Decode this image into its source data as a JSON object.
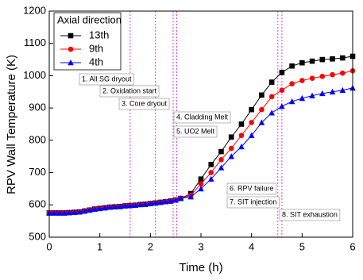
{
  "chart_data": {
    "type": "line",
    "x_label": "Time (h)",
    "y_label": "RPV Wall Temperature (K)",
    "xlim": [
      0,
      6
    ],
    "ylim": [
      500,
      1200
    ],
    "xticks": [
      0,
      1,
      2,
      3,
      4,
      5,
      6
    ],
    "yticks": [
      500,
      600,
      700,
      800,
      900,
      1000,
      1100,
      1200
    ],
    "legend_title": "Axial direction",
    "legend_position": "upper left",
    "x": [
      0,
      0.1,
      0.2,
      0.3,
      0.4,
      0.5,
      0.6,
      0.7,
      0.8,
      0.9,
      1.0,
      1.1,
      1.2,
      1.3,
      1.4,
      1.5,
      1.6,
      1.7,
      1.8,
      1.9,
      2.0,
      2.1,
      2.2,
      2.3,
      2.4,
      2.5,
      2.6,
      2.8,
      3.0,
      3.2,
      3.4,
      3.6,
      3.8,
      4.0,
      4.2,
      4.4,
      4.6,
      4.8,
      5.0,
      5.2,
      5.4,
      5.6,
      5.8,
      6.0
    ],
    "series": [
      {
        "name": "13th",
        "color": "#000000",
        "marker": "square",
        "values": [
          575,
          575,
          575,
          575,
          576,
          577,
          578,
          581,
          584,
          587,
          589,
          591,
          593,
          594,
          595,
          597,
          598,
          599,
          601,
          602,
          604,
          606,
          608,
          610,
          612,
          615,
          620,
          635,
          680,
          725,
          765,
          810,
          850,
          895,
          940,
          980,
          1010,
          1030,
          1040,
          1045,
          1050,
          1052,
          1055,
          1060
        ]
      },
      {
        "name": "9th",
        "color": "#ff0000",
        "marker": "circle",
        "values": [
          575,
          575,
          575,
          575,
          576,
          577,
          578,
          581,
          584,
          587,
          589,
          591,
          593,
          594,
          595,
          597,
          598,
          599,
          601,
          602,
          604,
          606,
          608,
          610,
          612,
          615,
          620,
          630,
          665,
          700,
          740,
          775,
          815,
          855,
          895,
          935,
          955,
          975,
          985,
          992,
          998,
          1003,
          1008,
          1015
        ]
      },
      {
        "name": "4th",
        "color": "#0000ff",
        "marker": "triangle",
        "values": [
          575,
          575,
          575,
          575,
          576,
          577,
          578,
          581,
          584,
          587,
          589,
          591,
          593,
          594,
          595,
          597,
          598,
          599,
          601,
          602,
          604,
          606,
          608,
          610,
          612,
          615,
          620,
          625,
          650,
          680,
          715,
          750,
          780,
          815,
          855,
          885,
          905,
          920,
          930,
          938,
          945,
          950,
          955,
          962
        ]
      }
    ],
    "event_lines": [
      1.6,
      2.1,
      2.45,
      2.52,
      4.52,
      4.6
    ],
    "event_line_color": "#e040e0",
    "annotations": [
      "1. All SG dryout",
      "2. Oxidation start",
      "3. Core dryout",
      "4. Cladding Melt",
      "5. UO2 Melt",
      "6. RPV failure",
      "7. SIT injection",
      "8. SIT exhaustion"
    ]
  }
}
